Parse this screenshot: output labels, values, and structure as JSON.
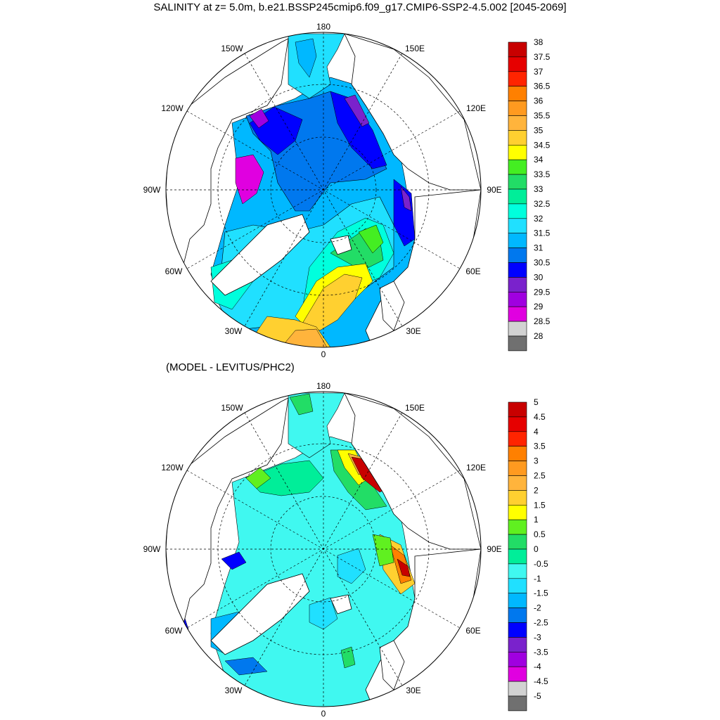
{
  "title": "SALINITY at z=   5.0m, b.e21.BSSP245cmip6.f09_g17.CMIP6-SSP2-4.5.002 [2045-2069]",
  "subtitle": "(MODEL - LEVITUS/PHC2)",
  "longitude_labels": {
    "top": "180",
    "bottom": "0",
    "upper_left": "150W",
    "upper_right": "150E",
    "left_upper": "120W",
    "right_upper": "120E",
    "left": "90W",
    "right": "90E",
    "left_lower": "60W",
    "right_lower": "60E",
    "lower_left": "30W",
    "lower_right": "30E"
  },
  "colors": {
    "land": "#ffffff",
    "coastline": "#000000",
    "grid": "#000000"
  },
  "salinity_colorbar": {
    "labels": [
      "38",
      "37.5",
      "37",
      "36.5",
      "36",
      "35.5",
      "35",
      "34.5",
      "34",
      "33.5",
      "33",
      "32.5",
      "32",
      "31.5",
      "31",
      "30.5",
      "30",
      "29.5",
      "29",
      "28.5",
      "28"
    ],
    "colors": [
      "#c80000",
      "#e60000",
      "#ff2400",
      "#ff8000",
      "#ff9a20",
      "#ffb43c",
      "#ffd030",
      "#ffff00",
      "#44ee22",
      "#22dd66",
      "#00ee99",
      "#00ffdd",
      "#20e0ff",
      "#00b8ff",
      "#0078ee",
      "#0000ff",
      "#7a22cc",
      "#a000e0",
      "#e000e0",
      "#d2d2d2",
      "#707070"
    ]
  },
  "difference_colorbar": {
    "labels": [
      "5",
      "4.5",
      "4",
      "3.5",
      "3",
      "2.5",
      "2",
      "1.5",
      "1",
      "0.5",
      "0",
      "-0.5",
      "-1",
      "-1.5",
      "-2",
      "-2.5",
      "-3",
      "-3.5",
      "-4",
      "-4.5",
      "-5"
    ],
    "colors": [
      "#c80000",
      "#e60000",
      "#ff2400",
      "#ff8000",
      "#ff9a20",
      "#ffb43c",
      "#ffd030",
      "#ffff00",
      "#60f020",
      "#22dd66",
      "#00ee99",
      "#40f8f0",
      "#20e0ff",
      "#00b8ff",
      "#0078ee",
      "#0000ff",
      "#7a22cc",
      "#a000e0",
      "#e000e0",
      "#d2d2d2",
      "#707070"
    ]
  }
}
